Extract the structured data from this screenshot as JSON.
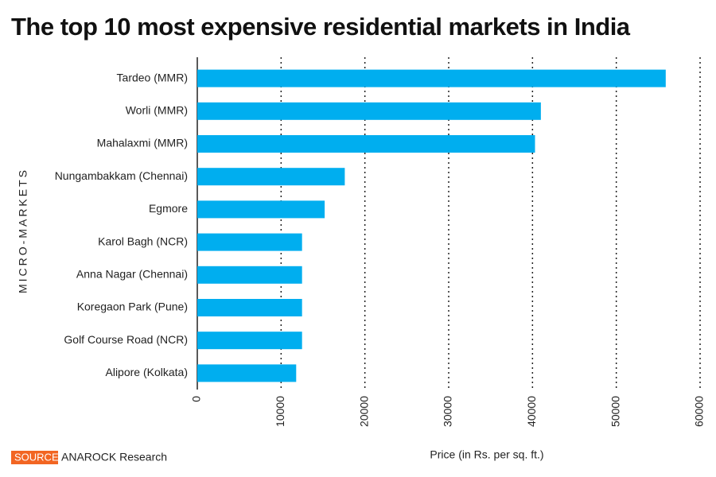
{
  "chart_data": {
    "type": "bar",
    "orientation": "horizontal",
    "title": "The top 10 most expensive residential markets in India",
    "y_label": "MICRO-MARKETS",
    "x_label": "Price (in Rs. per sq. ft.)",
    "source_tag": "SOURCE",
    "source": "ANAROCK Research",
    "categories": [
      "Tardeo (MMR)",
      "Worli (MMR)",
      "Mahalaxmi (MMR)",
      "Nungambakkam (Chennai)",
      "Egmore",
      "Karol Bagh (NCR)",
      "Anna Nagar (Chennai)",
      "Koregaon Park (Pune)",
      "Golf Course Road (NCR)",
      "Alipore (Kolkata)"
    ],
    "values": [
      55900,
      41000,
      40300,
      17600,
      15200,
      12500,
      12500,
      12500,
      12500,
      11800
    ],
    "color": "#00aeef",
    "xlim": [
      0,
      60000
    ],
    "xticks": [
      0,
      10000,
      20000,
      30000,
      40000,
      50000,
      60000
    ],
    "grid": true
  }
}
